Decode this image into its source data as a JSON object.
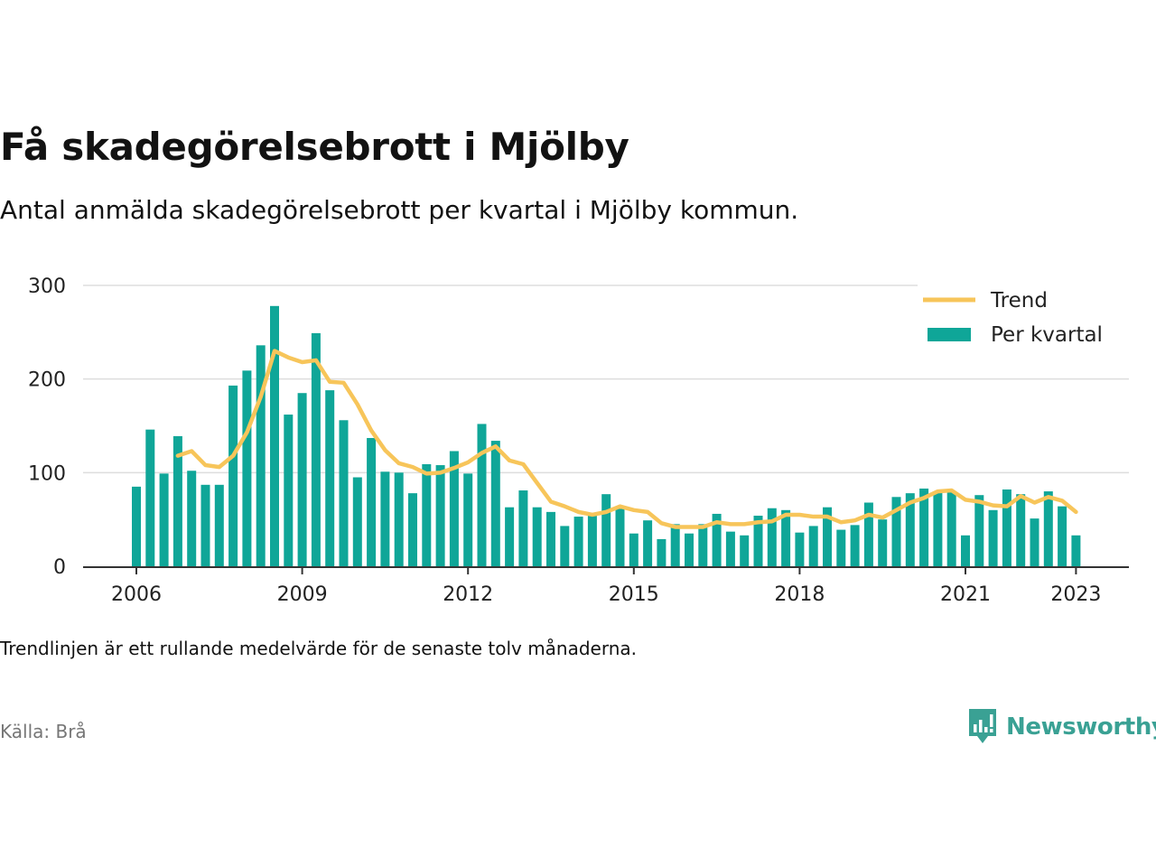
{
  "title": "Få skadegörelsebrott i Mjölby",
  "subtitle": "Antal anmälda skadegörelsebrott per kvartal i Mjölby kommun.",
  "note": "Trendlinjen är ett rullande medelvärde för de senaste tolv månaderna.",
  "source": "Källa: Brå",
  "brand": {
    "name": "Newsworthy",
    "icon": "newsworthy-logo-icon",
    "color": "#3aa194"
  },
  "chart_data": {
    "type": "bar",
    "x_start": "2006 Q1",
    "x_end": "2023 Q1",
    "x_ticks": [
      "2006",
      "2009",
      "2012",
      "2015",
      "2018",
      "2021",
      "2023"
    ],
    "y_ticks": [
      0,
      100,
      200,
      300
    ],
    "ylim": [
      0,
      300
    ],
    "grid": true,
    "legend_position": "top-right",
    "colors": {
      "bars": "#0fa698",
      "trend": "#f7c55a",
      "grid": "#dddddd",
      "axis": "#333333"
    },
    "series": [
      {
        "name": "Per kvartal",
        "kind": "bar",
        "values": [
          85,
          146,
          99,
          139,
          102,
          87,
          87,
          193,
          209,
          236,
          278,
          162,
          185,
          249,
          188,
          156,
          95,
          137,
          101,
          100,
          78,
          109,
          108,
          123,
          99,
          152,
          134,
          63,
          81,
          63,
          58,
          43,
          53,
          57,
          77,
          62,
          35,
          49,
          29,
          45,
          35,
          45,
          56,
          37,
          33,
          54,
          62,
          60,
          36,
          43,
          63,
          39,
          44,
          68,
          50,
          74,
          78,
          83,
          80,
          79,
          33,
          76,
          60,
          82,
          77,
          51,
          80,
          64,
          33
        ]
      },
      {
        "name": "Trend",
        "kind": "line",
        "start_index": 3,
        "values": [
          118,
          123,
          108,
          106,
          118,
          143,
          181,
          230,
          223,
          218,
          220,
          197,
          196,
          173,
          145,
          124,
          110,
          106,
          99,
          100,
          105,
          111,
          121,
          128,
          113,
          109,
          89,
          69,
          64,
          58,
          55,
          58,
          64,
          60,
          58,
          46,
          42,
          42,
          42,
          47,
          45,
          45,
          47,
          48,
          55,
          55,
          53,
          53,
          47,
          49,
          55,
          52,
          60,
          68,
          73,
          80,
          81,
          71,
          69,
          65,
          64,
          75,
          68,
          74,
          70,
          58
        ]
      }
    ]
  }
}
